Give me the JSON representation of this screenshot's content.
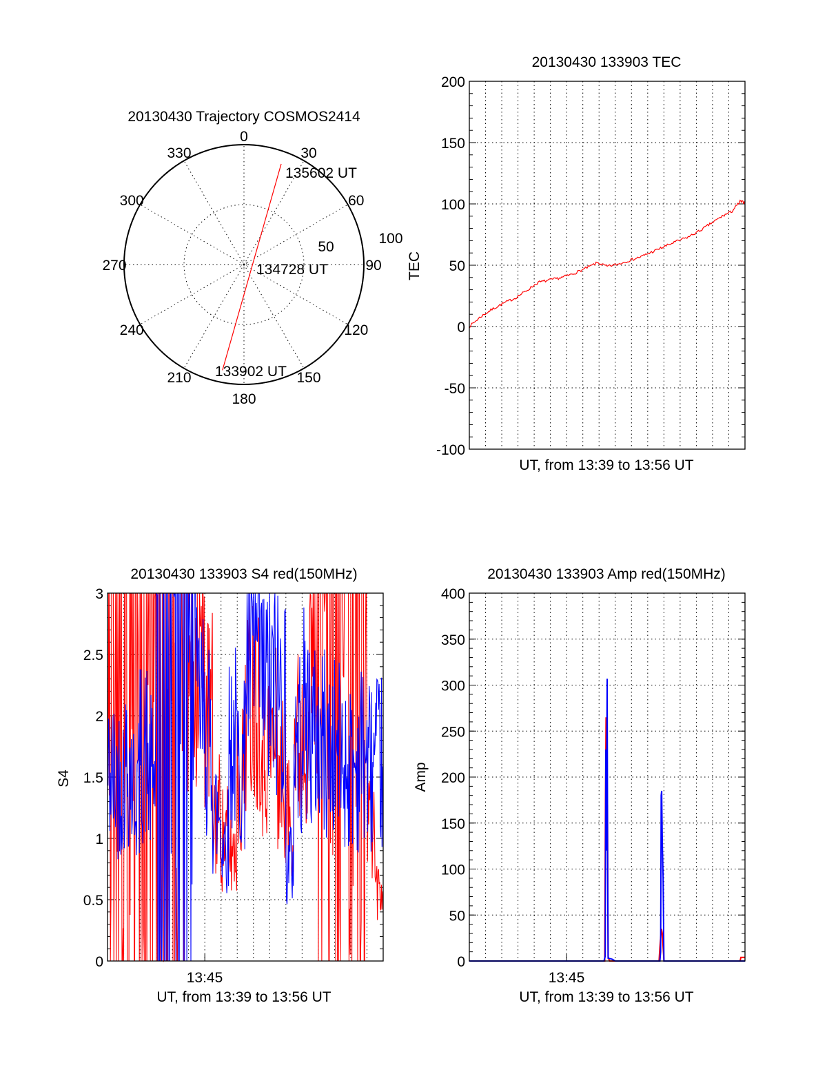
{
  "chart_data": [
    {
      "type": "polar",
      "title": "20130430 Trajectory COSMOS2414",
      "azimuth_labels": [
        "0",
        "30",
        "60",
        "90",
        "120",
        "150",
        "180",
        "210",
        "240",
        "270",
        "300",
        "330"
      ],
      "radial_labels": [
        "50",
        "100"
      ],
      "rlim": [
        0,
        100
      ],
      "series_color": "#ff0000",
      "trajectory": {
        "start": {
          "az": 191.5,
          "r": 90
        },
        "end": {
          "az": 20.3,
          "r": 89.5
        }
      },
      "annotations": [
        "135602 UT",
        "134728 UT",
        "133902 UT"
      ]
    },
    {
      "type": "line",
      "title": "20130430 133903 TEC",
      "xlabel": "UT, from 13:39 to 13:56 UT",
      "ylabel": "TEC",
      "xlim": [
        0,
        17
      ],
      "ylim": [
        -100,
        200
      ],
      "yticks": [
        "200",
        "150",
        "100",
        "50",
        "0",
        "-50",
        "-100"
      ],
      "grid": true,
      "series": [
        {
          "name": "TEC",
          "color": "#ff0000",
          "x": [
            0,
            0.7,
            1.4,
            2.1,
            2.8,
            3.5,
            4.25,
            5,
            5.7,
            6.4,
            7.1,
            7.9,
            8.5,
            9.2,
            9.9,
            10.6,
            11.3,
            12,
            12.7,
            13.5,
            14.2,
            14.9,
            15.6,
            16.2,
            16.7,
            17
          ],
          "y": [
            0,
            8,
            14,
            19,
            23,
            29,
            36,
            38,
            40,
            43,
            47,
            52,
            49,
            51,
            54,
            57,
            61,
            65,
            69,
            73,
            78,
            84,
            90,
            94,
            102,
            101
          ]
        }
      ]
    },
    {
      "type": "line",
      "title": "20130430 133903 S4 red(150MHz)",
      "xlabel": "UT, from 13:39 to 13:56 UT",
      "ylabel": "S4",
      "xlim": [
        0,
        17
      ],
      "ylim": [
        0,
        3
      ],
      "yticks": [
        "3",
        "2.5",
        "2",
        "1.5",
        "1",
        "0.5",
        "0"
      ],
      "xticks": [
        "13:45"
      ],
      "grid": true,
      "bin_minutes": 0.5,
      "series": [
        {
          "name": "red",
          "color": "#ff0000",
          "levels": [
            3,
            3,
            3,
            3,
            3,
            3,
            3,
            3,
            3,
            3,
            2.5,
            2.5,
            2,
            1.2,
            1.0,
            0.9,
            1.5,
            2.2,
            2.2,
            1.8,
            1.8,
            1.5,
            1.2,
            1.8,
            2.0,
            2.5,
            3,
            3,
            3,
            3,
            3,
            3,
            1.2,
            0.6
          ]
        },
        {
          "name": "blue",
          "color": "#0000ff",
          "levels": [
            1.5,
            1.5,
            1.6,
            1.4,
            1.7,
            1.5,
            3,
            3,
            3,
            3,
            3,
            2.0,
            1.8,
            1.2,
            1.0,
            1.8,
            1.6,
            2.5,
            2.5,
            2.2,
            2.2,
            2.2,
            0.8,
            1.8,
            2.0,
            1.8,
            1.8,
            1.7,
            1.7,
            1.6,
            1.6,
            1.7,
            1.6,
            1.6
          ]
        }
      ]
    },
    {
      "type": "line",
      "title": "20130430 133903 Amp red(150MHz)",
      "xlabel": "UT, from 13:39 to 13:56 UT",
      "ylabel": "Amp",
      "xlim": [
        0,
        17
      ],
      "ylim": [
        0,
        400
      ],
      "yticks": [
        "400",
        "350",
        "300",
        "250",
        "200",
        "150",
        "100",
        "50",
        "0"
      ],
      "xticks": [
        "13:45"
      ],
      "grid": true,
      "series": [
        {
          "name": "red",
          "color": "#ff0000",
          "x": [
            0,
            8.35,
            8.4,
            8.43,
            8.47,
            8.52,
            8.56,
            8.6,
            8.65,
            11.7,
            11.75,
            11.8,
            11.85,
            11.9,
            11.95,
            12,
            16.7,
            16.75,
            17
          ],
          "y": [
            0,
            0,
            180,
            265,
            140,
            170,
            5,
            2,
            0,
            0,
            15,
            25,
            35,
            30,
            15,
            0,
            0,
            4,
            4
          ]
        },
        {
          "name": "blue",
          "color": "#0000ff",
          "x": [
            0,
            8.3,
            8.38,
            8.42,
            8.45,
            8.5,
            8.53,
            8.56,
            8.8,
            9,
            11.75,
            11.8,
            11.83,
            11.86,
            11.9,
            11.95,
            12,
            17
          ],
          "y": [
            0,
            0,
            5,
            230,
            120,
            307,
            100,
            3,
            2,
            0,
            0,
            10,
            180,
            185,
            130,
            90,
            0,
            0
          ]
        }
      ]
    }
  ]
}
